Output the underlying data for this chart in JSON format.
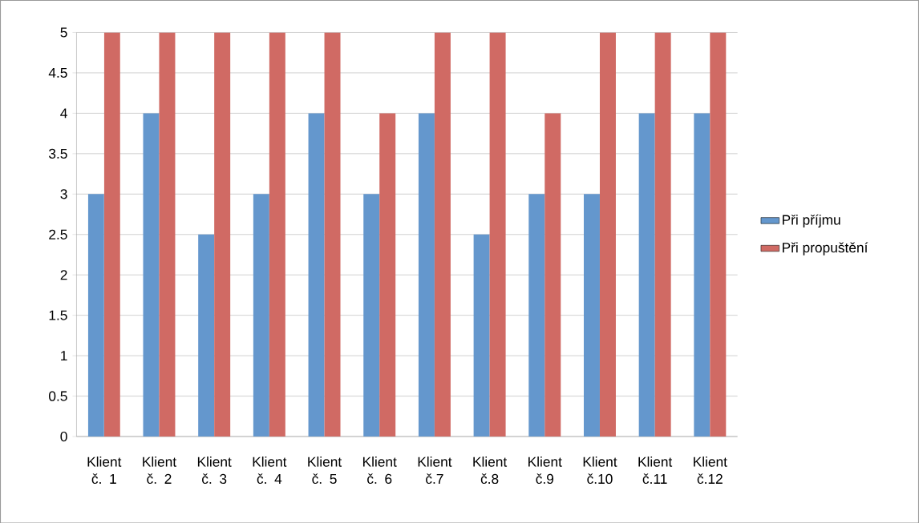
{
  "chart_data": {
    "type": "bar",
    "categories": [
      "Klient č. 1",
      "Klient č. 2",
      "Klient č. 3",
      "Klient č. 4",
      "Klient č. 5",
      "Klient č. 6",
      "Klient č.7",
      "Klient č.8",
      "Klient č.9",
      "Klient č.10",
      "Klient č.11",
      "Klient č.12"
    ],
    "series": [
      {
        "name": "Při příjmu",
        "color": "#6497cd",
        "values": [
          3,
          4,
          2.5,
          3,
          4,
          3,
          4,
          2.5,
          3,
          3,
          4,
          4
        ]
      },
      {
        "name": "Při propuštění",
        "color": "#d06a64",
        "values": [
          5,
          5,
          5,
          5,
          5,
          4,
          5,
          5,
          4,
          5,
          5,
          5
        ]
      }
    ],
    "ylim": [
      0,
      5
    ],
    "yticks": [
      0,
      0.5,
      1,
      1.5,
      2,
      2.5,
      3,
      3.5,
      4,
      4.5,
      5
    ],
    "grid": "y",
    "legend": "right"
  }
}
